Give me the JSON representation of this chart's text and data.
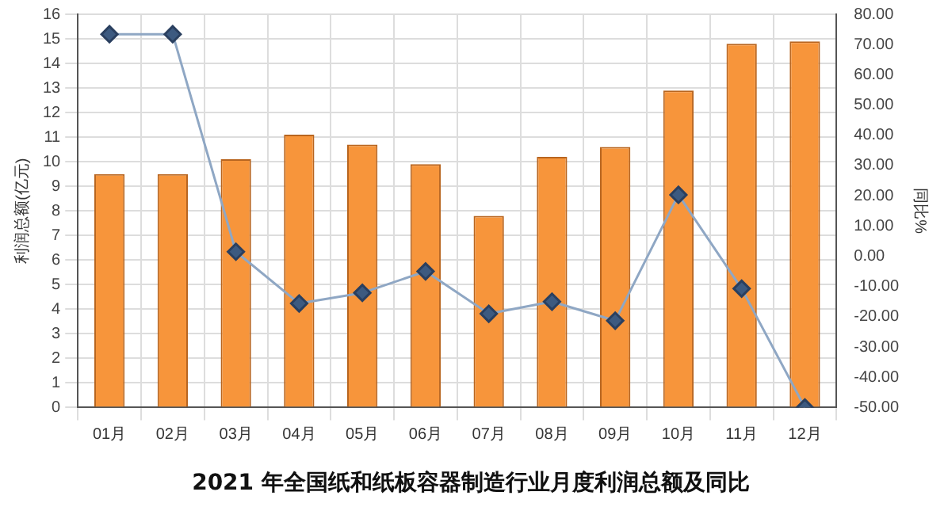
{
  "chart_data": {
    "type": "bar",
    "title": "2021 年全国纸和纸板容器制造行业月度利润总额及同比",
    "ylabel": "利润总额(亿元)",
    "y2label": "同比%",
    "categories": [
      "01月",
      "02月",
      "03月",
      "04月",
      "05月",
      "06月",
      "07月",
      "08月",
      "09月",
      "10月",
      "11月",
      "12月"
    ],
    "series": [
      {
        "color": "#f7953b",
        "values": [
          9.5,
          9.5,
          10.1,
          11.1,
          10.7,
          9.9,
          7.8,
          10.2,
          10.6,
          12.9,
          14.8,
          14.9
        ]
      },
      {
        "type": "line",
        "axis": "y2",
        "color": "#8fa7c4",
        "marker": "diamond",
        "values": [
          73.4,
          73.4,
          1.5,
          -15.6,
          -12.1,
          -5.0,
          -19.0,
          -15.0,
          -21.3,
          20.3,
          -10.7,
          -50
        ]
      }
    ],
    "ylim": [
      0,
      16
    ],
    "yticks": [
      0,
      1,
      2,
      3,
      4,
      5,
      6,
      7,
      8,
      9,
      10,
      11,
      12,
      13,
      14,
      15,
      16
    ],
    "y2lim": [
      -50,
      80
    ],
    "y2ticks": [
      {
        "value": -50,
        "label": "-50.00"
      },
      {
        "value": -40,
        "label": "-40.00"
      },
      {
        "value": -30,
        "label": "-30.00"
      },
      {
        "value": -20,
        "label": "-20.00"
      },
      {
        "value": -10,
        "label": "-10.00"
      },
      {
        "value": 0,
        "label": "0.00"
      },
      {
        "value": 10,
        "label": "10.00"
      },
      {
        "value": 20,
        "label": "20.00"
      },
      {
        "value": 30,
        "label": "30.00"
      },
      {
        "value": 40,
        "label": "40.00"
      },
      {
        "value": 50,
        "label": "50.00"
      },
      {
        "value": 60,
        "label": "60.00"
      },
      {
        "value": 70,
        "label": "70.00"
      },
      {
        "value": 80,
        "label": "80.00"
      }
    ],
    "grid": true,
    "legend": false
  }
}
